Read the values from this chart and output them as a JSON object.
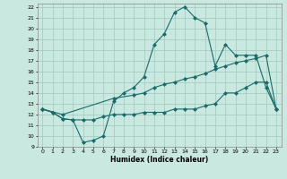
{
  "xlabel": "Humidex (Indice chaleur)",
  "xlim": [
    -0.5,
    23.5
  ],
  "ylim": [
    9,
    22.3
  ],
  "xticks": [
    0,
    1,
    2,
    3,
    4,
    5,
    6,
    7,
    8,
    9,
    10,
    11,
    12,
    13,
    14,
    15,
    16,
    17,
    18,
    19,
    20,
    21,
    22,
    23
  ],
  "yticks": [
    9,
    10,
    11,
    12,
    13,
    14,
    15,
    16,
    17,
    18,
    19,
    20,
    21,
    22
  ],
  "background_color": "#c8e8e0",
  "grid_color": "#a0c8c0",
  "line_color": "#1a6b6b",
  "line1_x": [
    0,
    1,
    2,
    3,
    4,
    5,
    6,
    7,
    8,
    9,
    10,
    11,
    12,
    13,
    14,
    15,
    16,
    17,
    18,
    19,
    20,
    21,
    22,
    23
  ],
  "line1_y": [
    12.5,
    12.2,
    11.6,
    11.5,
    9.4,
    9.6,
    10.0,
    13.2,
    14.0,
    14.5,
    15.5,
    18.5,
    19.5,
    21.5,
    22.0,
    21.0,
    20.5,
    16.5,
    18.5,
    17.5,
    17.5,
    17.5,
    14.5,
    12.5
  ],
  "line2_x": [
    0,
    1,
    2,
    3,
    4,
    5,
    6,
    7,
    8,
    9,
    10,
    11,
    12,
    13,
    14,
    15,
    16,
    17,
    18,
    19,
    20,
    21,
    22,
    23
  ],
  "line2_y": [
    12.5,
    12.2,
    11.6,
    11.5,
    11.5,
    11.5,
    11.8,
    12.0,
    12.0,
    12.0,
    12.2,
    12.2,
    12.2,
    12.5,
    12.5,
    12.5,
    12.8,
    13.0,
    14.0,
    14.0,
    14.5,
    15.0,
    15.0,
    12.5
  ],
  "line3_x": [
    0,
    2,
    7,
    9,
    10,
    11,
    12,
    13,
    14,
    15,
    16,
    17,
    18,
    19,
    20,
    21,
    22,
    23
  ],
  "line3_y": [
    12.5,
    12.0,
    13.5,
    13.8,
    14.0,
    14.5,
    14.8,
    15.0,
    15.3,
    15.5,
    15.8,
    16.2,
    16.5,
    16.8,
    17.0,
    17.2,
    17.5,
    12.5
  ]
}
